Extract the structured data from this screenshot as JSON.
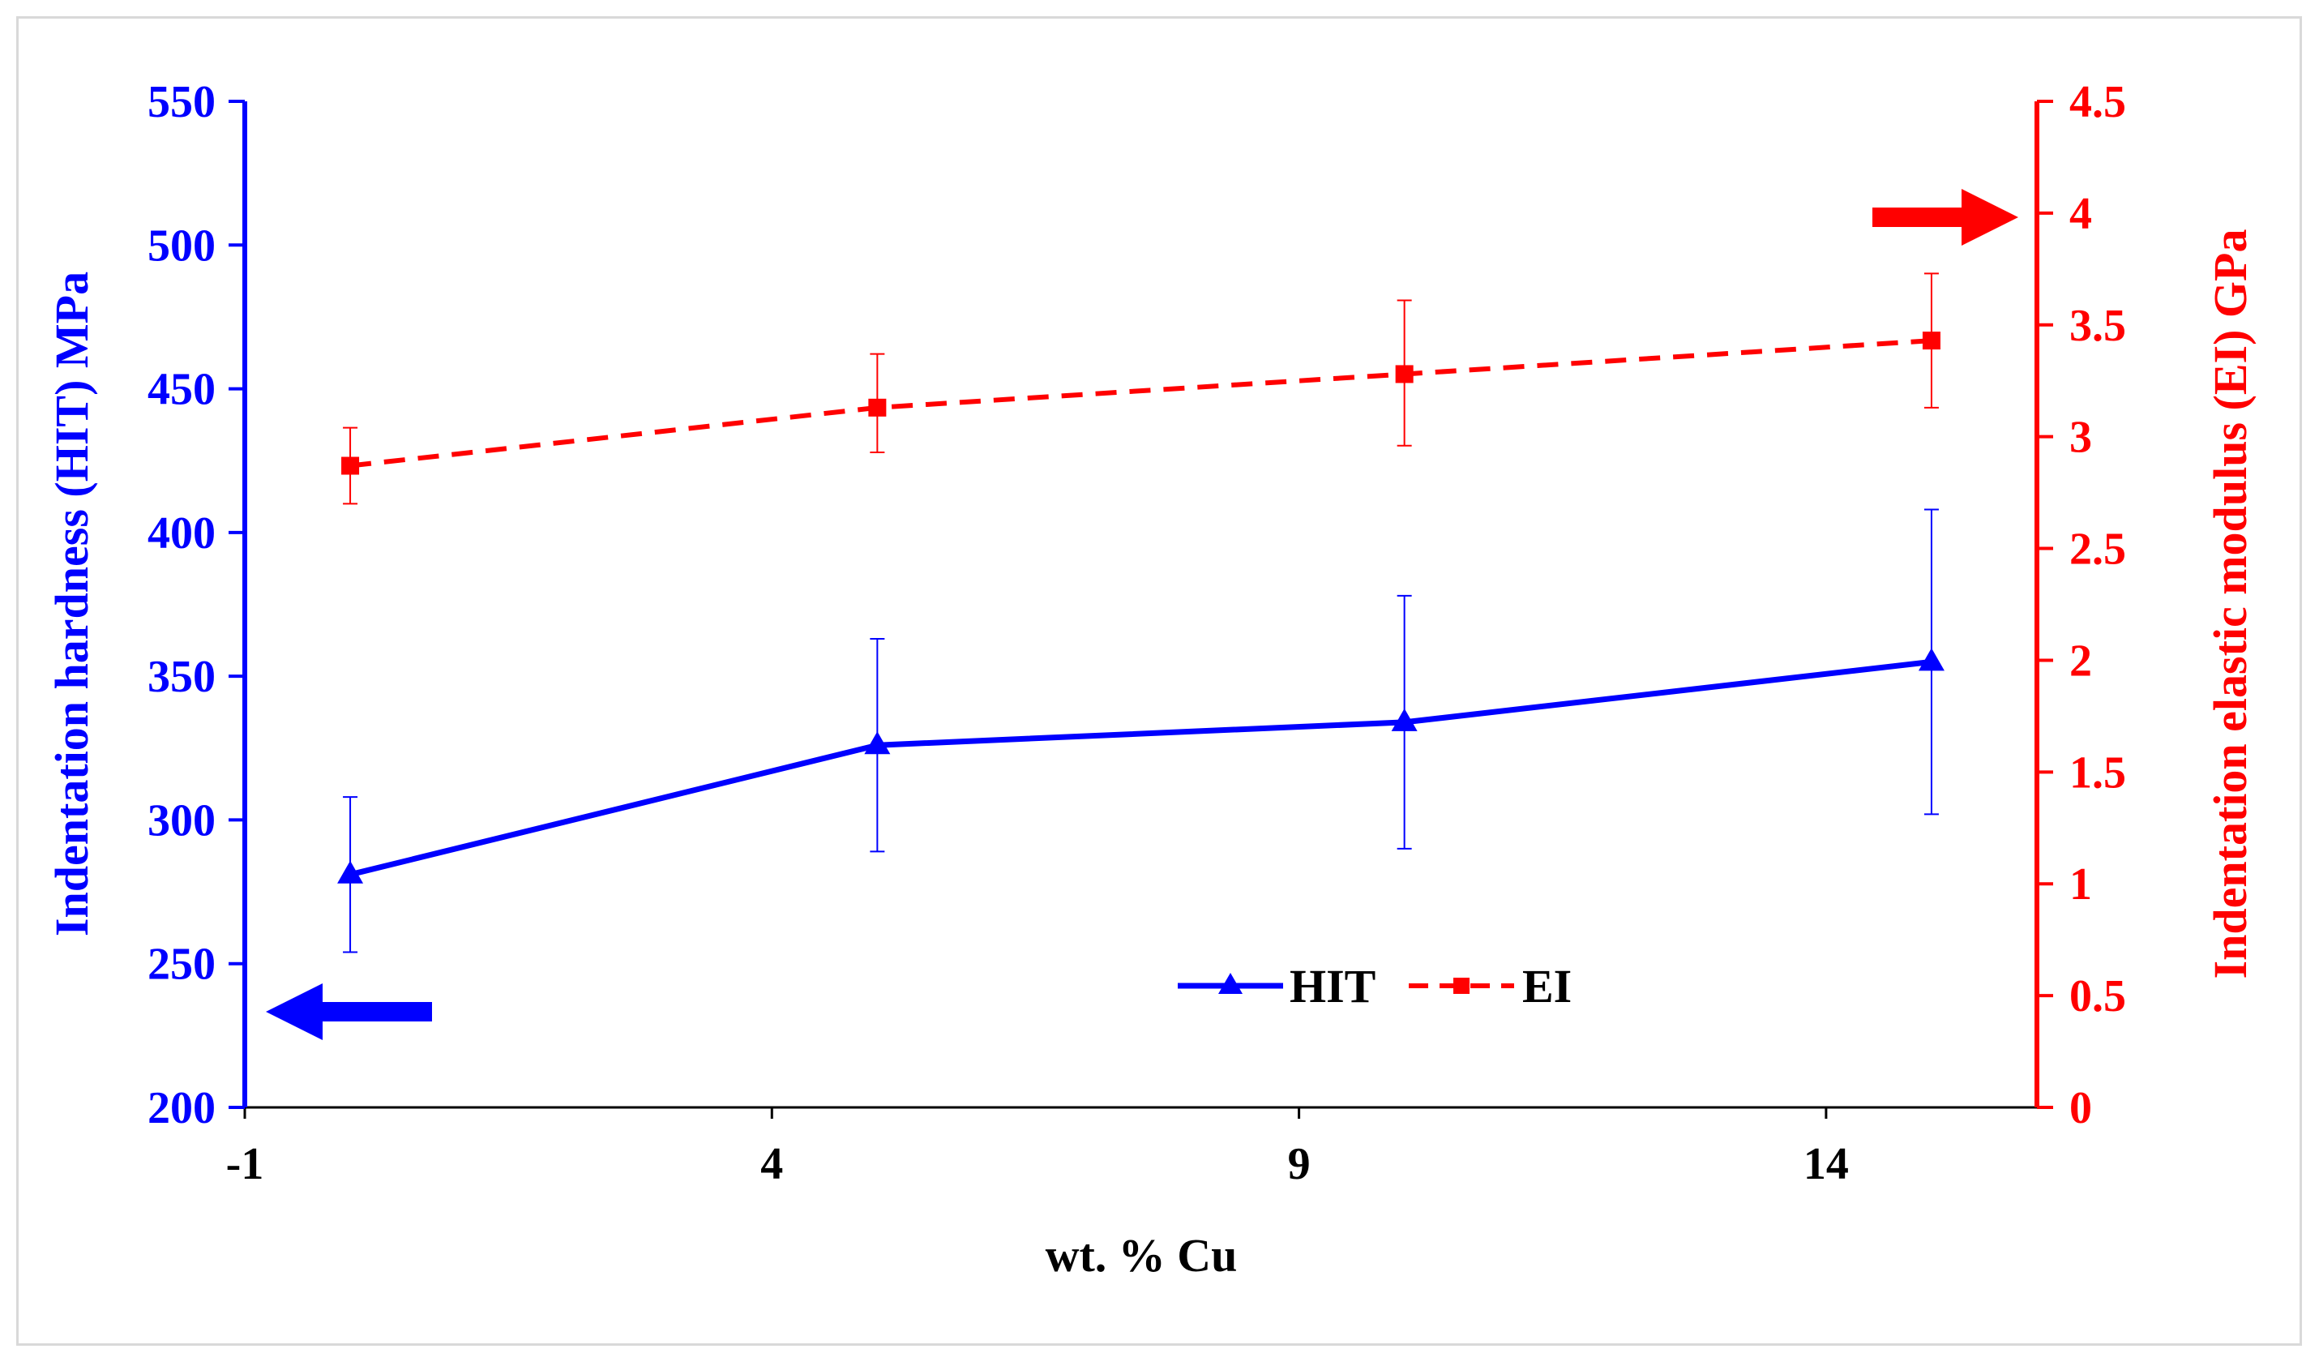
{
  "chart_data": {
    "type": "line",
    "title": "",
    "xlabel": "wt. % Cu",
    "ylabel_left": "Indentation hardness (HIT) MPa",
    "ylabel_right": "Indentation elastic modulus (EI) GPa",
    "xlim": [
      -1,
      16
    ],
    "xticks": [
      -1,
      4,
      9,
      14
    ],
    "ylim_left": [
      200,
      550
    ],
    "yticks_left": [
      200,
      250,
      300,
      350,
      400,
      450,
      500,
      550
    ],
    "ylim_right": [
      0,
      4.5
    ],
    "yticks_right": [
      0,
      0.5,
      1,
      1.5,
      2,
      2.5,
      3,
      3.5,
      4,
      4.5
    ],
    "legend_position": "bottom-center",
    "grid": false,
    "series": [
      {
        "name": "HIT",
        "axis": "left",
        "color": "#0000ff",
        "line_style": "solid",
        "marker": "triangle",
        "x": [
          0,
          5,
          10,
          15
        ],
        "values": [
          281,
          326,
          334,
          355
        ],
        "error_low": [
          254,
          289,
          290,
          302
        ],
        "error_high": [
          308,
          363,
          378,
          408
        ]
      },
      {
        "name": "EI",
        "axis": "right",
        "color": "#ff0000",
        "line_style": "dashed",
        "marker": "square",
        "x": [
          0,
          5,
          10,
          15
        ],
        "values": [
          2.87,
          3.13,
          3.28,
          3.43
        ],
        "error_low": [
          2.7,
          2.93,
          2.96,
          3.13
        ],
        "error_high": [
          3.04,
          3.37,
          3.61,
          3.73
        ]
      }
    ],
    "annotations": [
      {
        "type": "arrow",
        "direction": "left",
        "points_to": "left-axis",
        "color": "#0000ff"
      },
      {
        "type": "arrow",
        "direction": "right",
        "points_to": "right-axis",
        "color": "#ff0000"
      }
    ]
  }
}
